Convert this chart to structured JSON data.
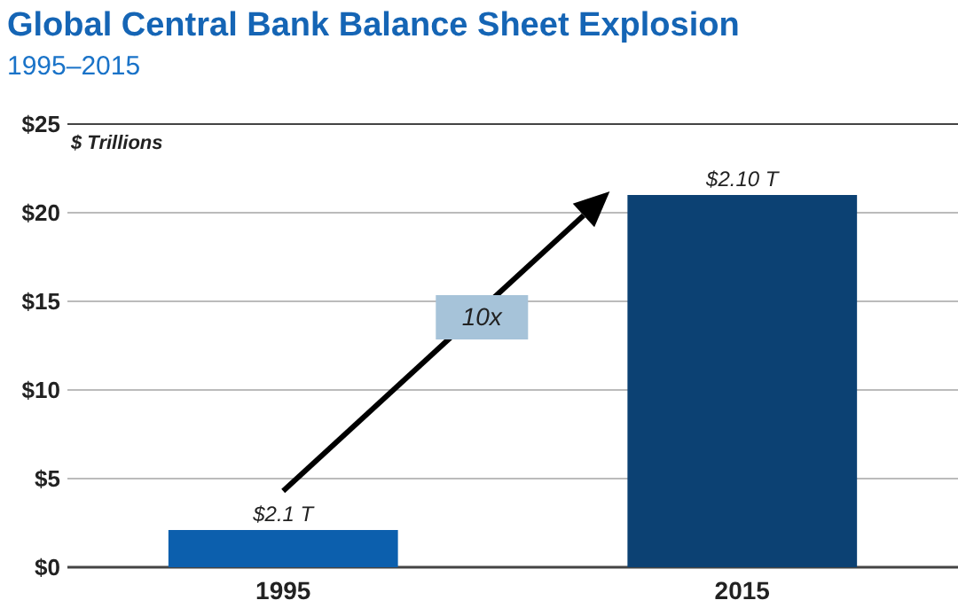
{
  "chart_data": {
    "type": "bar",
    "title": "Global Central Bank Balance Sheet Explosion",
    "subtitle": "1995–2015",
    "ylabel": "$ Trillions",
    "categories": [
      "1995",
      "2015"
    ],
    "values": [
      2.1,
      21.0
    ],
    "colors": [
      "#0c5fad",
      "#0c4173"
    ],
    "value_labels": [
      "$2.1 T",
      null
    ],
    "ylim": [
      0,
      25
    ],
    "yticks": [
      {
        "value": 0,
        "label": "$0"
      },
      {
        "value": 5,
        "label": "$5"
      },
      {
        "value": 10,
        "label": "$10"
      },
      {
        "value": 15,
        "label": "$15"
      },
      {
        "value": 20,
        "label": "$20"
      },
      {
        "value": 25,
        "label": "$25"
      }
    ],
    "grid": "y",
    "annotations": [
      "10x",
      {
        "text": "$2.10 T",
        "x": "2015",
        "y": 21
      }
    ]
  }
}
